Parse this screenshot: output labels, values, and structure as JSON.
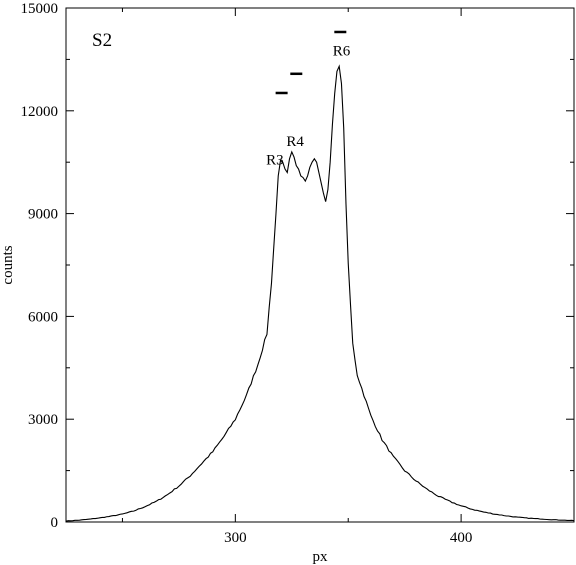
{
  "chart_data": {
    "type": "line",
    "panel_label": "S2",
    "xlabel": "px",
    "ylabel": "counts",
    "xlim": [
      225,
      450
    ],
    "ylim": [
      0,
      15000
    ],
    "xticks": [
      300,
      400
    ],
    "yticks": [
      0,
      3000,
      6000,
      9000,
      12000,
      15000
    ],
    "grid": false,
    "series": [
      {
        "x": [
          225,
          230,
          235,
          240,
          245,
          250,
          255,
          260,
          265,
          270,
          275,
          280,
          285,
          290,
          295,
          300,
          305,
          310,
          314,
          316,
          318,
          319,
          320,
          321,
          322,
          323,
          324,
          325,
          326,
          327,
          328,
          329,
          330,
          331,
          332,
          333,
          334,
          335,
          336,
          337,
          338,
          339,
          340,
          341,
          342,
          343,
          344,
          345,
          346,
          347,
          348,
          349,
          350,
          352,
          354,
          356,
          358,
          360,
          365,
          370,
          375,
          380,
          385,
          390,
          395,
          400,
          405,
          410,
          415,
          420,
          425,
          430,
          435,
          440,
          445,
          450
        ],
        "y": [
          30,
          50,
          80,
          120,
          170,
          230,
          320,
          450,
          600,
          800,
          1050,
          1350,
          1700,
          2050,
          2500,
          3000,
          3700,
          4600,
          5500,
          7000,
          9000,
          10100,
          10550,
          10500,
          10300,
          10200,
          10600,
          10800,
          10650,
          10400,
          10300,
          10100,
          10050,
          9950,
          10100,
          10350,
          10500,
          10600,
          10500,
          10200,
          9900,
          9600,
          9350,
          9700,
          10500,
          11600,
          12500,
          13150,
          13300,
          12800,
          11500,
          9300,
          7500,
          5200,
          4300,
          3900,
          3500,
          3100,
          2400,
          1900,
          1500,
          1200,
          950,
          750,
          600,
          470,
          370,
          290,
          230,
          180,
          140,
          110,
          90,
          70,
          55,
          40
        ]
      }
    ],
    "annotations": [
      {
        "text": "R3",
        "x": 317.5,
        "y": 10430
      },
      {
        "text": "R4",
        "x": 326.5,
        "y": 10980
      },
      {
        "text": "R6",
        "x": 347,
        "y": 13610
      }
    ],
    "markers": [
      {
        "x": 320.5,
        "y": 12520
      },
      {
        "x": 327,
        "y": 13080
      },
      {
        "x": 346.5,
        "y": 14300
      }
    ]
  }
}
